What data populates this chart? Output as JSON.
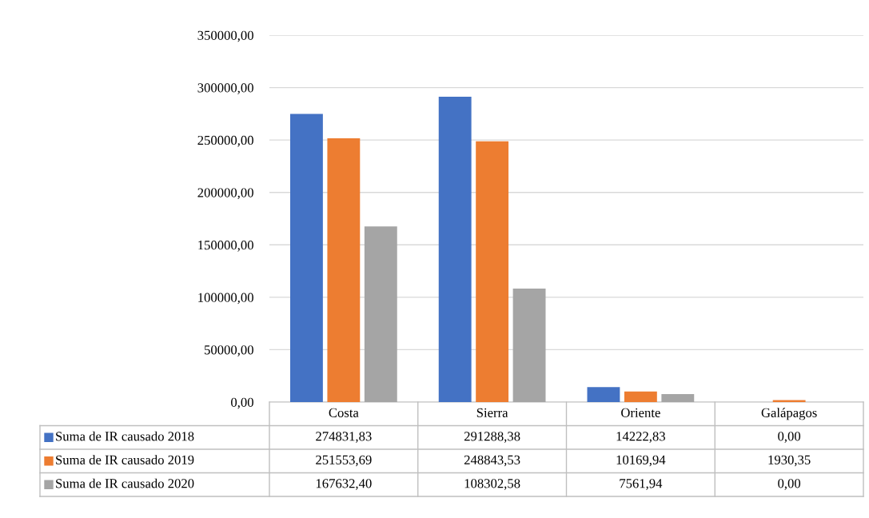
{
  "chart_data": {
    "type": "bar",
    "categories": [
      "Costa",
      "Sierra",
      "Oriente",
      "Galápagos"
    ],
    "series": [
      {
        "name": "Suma de IR causado 2018",
        "color": "#4472c4",
        "values": [
          274831.83,
          291288.38,
          14222.83,
          0.0
        ],
        "value_labels": [
          "274831,83",
          "291288,38",
          "14222,83",
          "0,00"
        ]
      },
      {
        "name": "Suma de IR causado 2019",
        "color": "#ed7d31",
        "values": [
          251553.69,
          248843.53,
          10169.94,
          1930.35
        ],
        "value_labels": [
          "251553,69",
          "248843,53",
          "10169,94",
          "1930,35"
        ]
      },
      {
        "name": "Suma de IR causado 2020",
        "color": "#a5a5a5",
        "values": [
          167632.4,
          108302.58,
          7561.94,
          0.0
        ],
        "value_labels": [
          "167632,40",
          "108302,58",
          "7561,94",
          "0,00"
        ]
      }
    ],
    "ylim": [
      0,
      350000
    ],
    "yticks": [
      {
        "value": 0,
        "label": "0,00"
      },
      {
        "value": 50000,
        "label": "50000,00"
      },
      {
        "value": 100000,
        "label": "100000,00"
      },
      {
        "value": 150000,
        "label": "150000,00"
      },
      {
        "value": 200000,
        "label": "200000,00"
      },
      {
        "value": 250000,
        "label": "250000,00"
      },
      {
        "value": 300000,
        "label": "300000,00"
      },
      {
        "value": 350000,
        "label": "350000,00"
      }
    ],
    "grid": "y",
    "legend": "bottom"
  }
}
